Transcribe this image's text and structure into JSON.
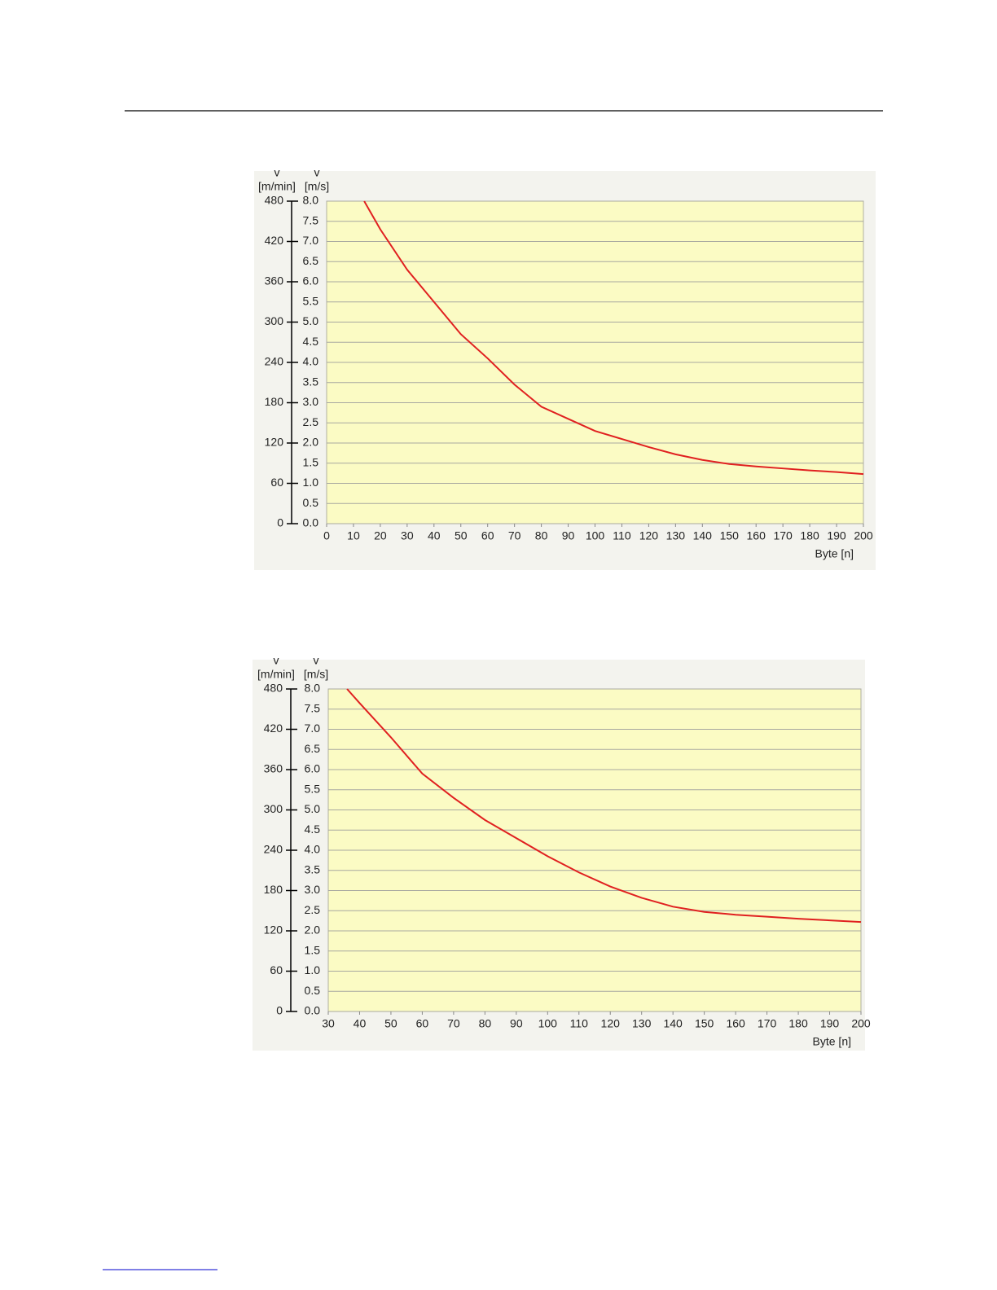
{
  "chart_data": [
    {
      "type": "line",
      "xlabel": "Byte [n]",
      "ylabel": [
        "v",
        "[m/s]"
      ],
      "y2label": [
        "v",
        "[m/min]"
      ],
      "x": [
        14,
        20,
        30,
        40,
        50,
        60,
        70,
        80,
        90,
        100,
        110,
        120,
        130,
        140,
        150,
        160,
        170,
        180,
        190,
        200
      ],
      "series": [
        {
          "color": "#e02020",
          "values": [
            8.0,
            7.3,
            6.3,
            5.5,
            4.7,
            4.1,
            3.45,
            2.9,
            2.6,
            2.3,
            2.1,
            1.9,
            1.72,
            1.58,
            1.48,
            1.42,
            1.37,
            1.32,
            1.28,
            1.23
          ]
        }
      ],
      "xlim": [
        0,
        200
      ],
      "xticks": [
        0,
        10,
        20,
        30,
        40,
        50,
        60,
        70,
        80,
        90,
        100,
        110,
        120,
        130,
        140,
        150,
        160,
        170,
        180,
        190,
        200
      ],
      "ylim": [
        0,
        8
      ],
      "yticks": [
        {
          "value": 0,
          "label": "0.0"
        },
        0.5,
        {
          "value": 1,
          "label": "1.0"
        },
        1.5,
        {
          "value": 2,
          "label": "2.0"
        },
        2.5,
        {
          "value": 3,
          "label": "3.0"
        },
        3.5,
        {
          "value": 4,
          "label": "4.0"
        },
        4.5,
        {
          "value": 5,
          "label": "5.0"
        },
        5.5,
        {
          "value": 6,
          "label": "6.0"
        },
        6.5,
        {
          "value": 7,
          "label": "7.0"
        },
        7.5,
        {
          "value": 8,
          "label": "8.0"
        }
      ],
      "y2lim": [
        0,
        480
      ],
      "y2ticks": [
        0,
        60,
        120,
        180,
        240,
        300,
        360,
        420,
        480
      ],
      "grid": true
    },
    {
      "type": "line",
      "xlabel": "Byte [n]",
      "ylabel": [
        "v",
        "[m/s]"
      ],
      "y2label": [
        "v",
        "[m/min]"
      ],
      "x": [
        36,
        40,
        50,
        60,
        70,
        80,
        90,
        100,
        110,
        120,
        130,
        140,
        150,
        160,
        170,
        180,
        190,
        200
      ],
      "series": [
        {
          "color": "#e02020",
          "values": [
            8.0,
            7.65,
            6.8,
            5.9,
            5.3,
            4.75,
            4.3,
            3.85,
            3.45,
            3.1,
            2.82,
            2.6,
            2.47,
            2.4,
            2.35,
            2.3,
            2.26,
            2.22
          ]
        }
      ],
      "xlim": [
        30,
        200
      ],
      "xticks": [
        30,
        40,
        50,
        60,
        70,
        80,
        90,
        100,
        110,
        120,
        130,
        140,
        150,
        160,
        170,
        180,
        190,
        200
      ],
      "ylim": [
        0,
        8
      ],
      "yticks": [
        {
          "value": 0,
          "label": "0.0"
        },
        0.5,
        {
          "value": 1,
          "label": "1.0"
        },
        1.5,
        {
          "value": 2,
          "label": "2.0"
        },
        2.5,
        {
          "value": 3,
          "label": "3.0"
        },
        3.5,
        {
          "value": 4,
          "label": "4.0"
        },
        4.5,
        {
          "value": 5,
          "label": "5.0"
        },
        5.5,
        {
          "value": 6,
          "label": "6.0"
        },
        6.5,
        {
          "value": 7,
          "label": "7.0"
        },
        7.5,
        {
          "value": 8,
          "label": "8.0"
        }
      ],
      "y2lim": [
        0,
        480
      ],
      "y2ticks": [
        0,
        60,
        120,
        180,
        240,
        300,
        360,
        420,
        480
      ],
      "grid": true
    }
  ]
}
